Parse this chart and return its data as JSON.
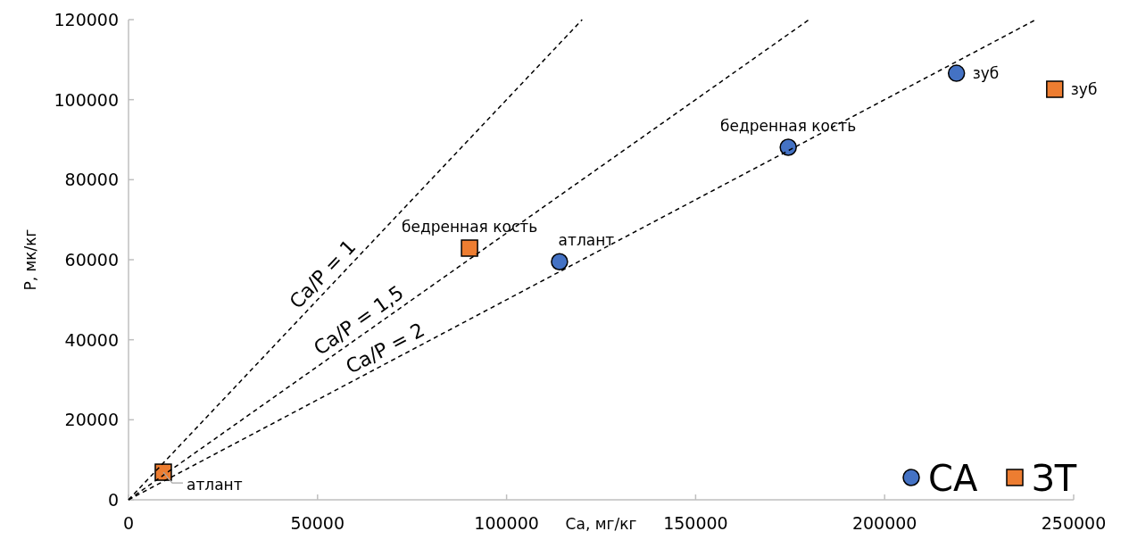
{
  "chart_data": {
    "type": "scatter",
    "xlabel": "Ca, мг/кг",
    "ylabel": "P, мк/кг",
    "xlim": [
      0,
      250000
    ],
    "ylim": [
      0,
      120000
    ],
    "xticks": [
      0,
      50000,
      100000,
      150000,
      200000,
      250000
    ],
    "yticks": [
      0,
      20000,
      40000,
      60000,
      80000,
      100000,
      120000
    ],
    "grid": false,
    "legend": "bottom right",
    "series": [
      {
        "name": "СА",
        "color": "#4472c4",
        "marker": "circle",
        "x": [
          114000,
          174500,
          219000
        ],
        "values": [
          59500,
          88100,
          106600
        ]
      },
      {
        "name": "ЗТ",
        "color": "#ed7d31",
        "marker": "square",
        "x": [
          9200,
          90200,
          245000
        ],
        "values": [
          6900,
          62900,
          102600
        ]
      },
      {
        "name": "Ca/P = 1",
        "type": "line",
        "color": "#000000",
        "line_style": "dashed",
        "marker": "none",
        "x": [
          0,
          120000
        ],
        "values": [
          0,
          120000
        ]
      },
      {
        "name": "Ca/P = 1,5",
        "type": "line",
        "color": "#000000",
        "line_style": "dashed",
        "marker": "none",
        "x": [
          0,
          180000
        ],
        "values": [
          0,
          120000
        ]
      },
      {
        "name": "Ca/P = 2",
        "type": "line",
        "color": "#000000",
        "line_style": "dashed",
        "marker": "none",
        "x": [
          0,
          240000
        ],
        "values": [
          0,
          120000
        ]
      }
    ],
    "annotations": [
      {
        "text": "атлант",
        "x": 114000,
        "y": 59500
      },
      {
        "text": "бедренная кость",
        "x": 174500,
        "y": 88100
      },
      {
        "text": "зуб",
        "x": 219000,
        "y": 106600
      },
      {
        "text": "атлант",
        "x": 9200,
        "y": 6900
      },
      {
        "text": "бедренная кость",
        "x": 90200,
        "y": 62900
      },
      {
        "text": "зуб",
        "x": 245000,
        "y": 102600
      }
    ]
  }
}
